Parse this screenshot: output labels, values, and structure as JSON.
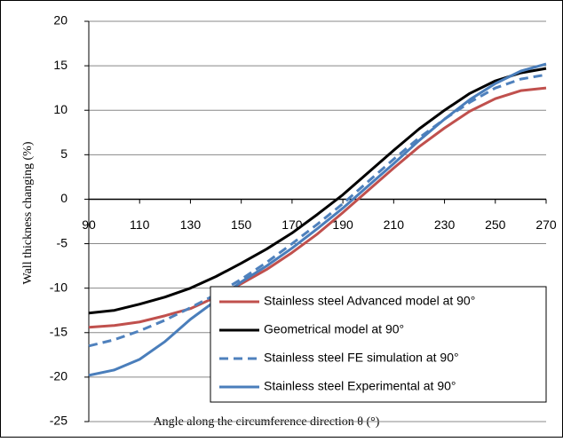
{
  "chart_data": {
    "type": "line",
    "xlabel": "Angle along the circumference direction θ (°)",
    "ylabel": "Wall thickness changing  (%)",
    "x": [
      90,
      100,
      110,
      120,
      130,
      140,
      150,
      160,
      170,
      180,
      190,
      200,
      210,
      220,
      230,
      240,
      250,
      260,
      270
    ],
    "series": [
      {
        "name": "Stainless steel Advanced model at 90°",
        "color": "#c0504d",
        "dashed": false,
        "values": [
          -14.4,
          -14.2,
          -13.8,
          -13.1,
          -12.3,
          -11,
          -9.5,
          -7.9,
          -6,
          -3.9,
          -1.5,
          1,
          3.5,
          5.9,
          8,
          9.9,
          11.3,
          12.2,
          12.5
        ]
      },
      {
        "name": "Geometrical model at 90°",
        "color": "#000000",
        "dashed": false,
        "values": [
          -12.8,
          -12.5,
          -11.8,
          -11,
          -10,
          -8.7,
          -7.2,
          -5.6,
          -3.8,
          -1.7,
          0.5,
          3,
          5.5,
          7.9,
          10,
          11.9,
          13.3,
          14.2,
          14.7
        ]
      },
      {
        "name": "Stainless steel FE simulation at 90°",
        "color": "#4f81bd",
        "dashed": true,
        "values": [
          -16.5,
          -15.8,
          -14.8,
          -13.6,
          -12.2,
          -10.7,
          -9,
          -7.1,
          -5,
          -2.8,
          -0.5,
          2,
          4.5,
          6.9,
          9,
          10.9,
          12.5,
          13.5,
          14
        ]
      },
      {
        "name": "Stainless steel Experimental at 90°",
        "color": "#4a7ebb",
        "dashed": false,
        "values": [
          -19.8,
          -19.2,
          -18,
          -16,
          -13.5,
          -11.4,
          -9.3,
          -7.5,
          -5.5,
          -3.3,
          -1,
          1.5,
          4,
          6.6,
          9,
          11.2,
          13,
          14.4,
          15.2
        ]
      }
    ],
    "xlim": [
      90,
      270
    ],
    "xticks": [
      90,
      110,
      130,
      150,
      170,
      190,
      210,
      230,
      250,
      270
    ],
    "ylim": [
      -25,
      20
    ],
    "yticks": [
      -25,
      -20,
      -15,
      -10,
      -5,
      0,
      5,
      10,
      15,
      20
    ],
    "grid": true,
    "legend": "lower right"
  }
}
